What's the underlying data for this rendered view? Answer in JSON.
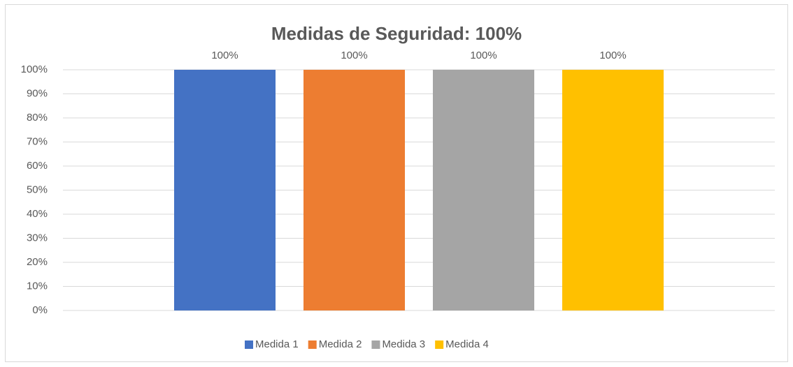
{
  "chart_data": {
    "type": "bar",
    "title": "Medidas de Seguridad: 100%",
    "categories": [
      null
    ],
    "series": [
      {
        "name": "Medida 1",
        "color": "#4472c4",
        "values": [
          100
        ],
        "value_labels": [
          "100%"
        ]
      },
      {
        "name": "Medida 2",
        "color": "#ed7d31",
        "values": [
          100
        ],
        "value_labels": [
          "100%"
        ]
      },
      {
        "name": "Medida 3",
        "color": "#a5a5a5",
        "values": [
          100
        ],
        "value_labels": [
          "100%"
        ]
      },
      {
        "name": "Medida 4",
        "color": "#ffc000",
        "values": [
          100
        ],
        "value_labels": [
          "100%"
        ]
      }
    ],
    "ylim": [
      0,
      100
    ],
    "yticks": [
      {
        "value": 0,
        "label": "0%"
      },
      {
        "value": 10,
        "label": "10%"
      },
      {
        "value": 20,
        "label": "20%"
      },
      {
        "value": 30,
        "label": "30%"
      },
      {
        "value": 40,
        "label": "40%"
      },
      {
        "value": 50,
        "label": "50%"
      },
      {
        "value": 60,
        "label": "60%"
      },
      {
        "value": 70,
        "label": "70%"
      },
      {
        "value": 80,
        "label": "80%"
      },
      {
        "value": 90,
        "label": "90%"
      },
      {
        "value": 100,
        "label": "100%"
      }
    ],
    "grid": true,
    "legend": "bottom"
  }
}
